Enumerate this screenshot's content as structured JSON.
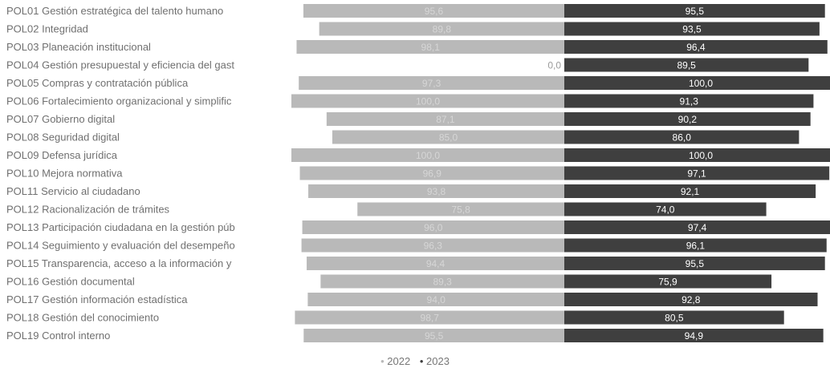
{
  "colors": {
    "series_2022": "#b9b9b9",
    "series_2023": "#3f3f3f",
    "label_2022": "#d6d6d6",
    "label_2023": "#ffffff",
    "zero_label": "#9a9a9a",
    "category_text": "#707070"
  },
  "chart_data": {
    "type": "bar",
    "orientation": "horizontal-diverging",
    "title": "",
    "xlabel": "",
    "ylabel": "",
    "xlim": [
      0,
      100
    ],
    "grid": false,
    "legend_position": "bottom",
    "categories": [
      "POL01  Gestión estratégica del talento humano",
      "POL02  Integridad",
      "POL03  Planeación institucional",
      "POL04  Gestión presupuestal y eficiencia del gast",
      "POL05  Compras y contratación pública",
      "POL06  Fortalecimiento organizacional y simplific",
      "POL07  Gobierno digital",
      "POL08  Seguridad digital",
      "POL09  Defensa jurídica",
      "POL10  Mejora normativa",
      "POL11  Servicio al ciudadano",
      "POL12  Racionalización de trámites",
      "POL13  Participación ciudadana en la gestión púb",
      "POL14  Seguimiento y evaluación del desempeño",
      "POL15  Transparencia, acceso a la información y",
      "POL16  Gestión documental",
      "POL17  Gestión información estadística",
      "POL18  Gestión del conocimiento",
      "POL19  Control interno"
    ],
    "series": [
      {
        "name": "2022",
        "values": [
          95.6,
          89.8,
          98.1,
          0.0,
          97.3,
          100.0,
          87.1,
          85.0,
          100.0,
          96.9,
          93.8,
          75.8,
          96.0,
          96.3,
          94.4,
          89.3,
          94.0,
          98.7,
          95.5
        ],
        "labels": [
          "95,6",
          "89,8",
          "98,1",
          "0,0",
          "97,3",
          "100,0",
          "87,1",
          "85,0",
          "100,0",
          "96,9",
          "93,8",
          "75,8",
          "96,0",
          "96,3",
          "94,4",
          "89,3",
          "94,0",
          "98,7",
          "95,5"
        ]
      },
      {
        "name": "2023",
        "values": [
          95.5,
          93.5,
          96.4,
          89.5,
          100.0,
          91.3,
          90.2,
          86.0,
          100.0,
          97.1,
          92.1,
          74.0,
          97.4,
          96.1,
          95.5,
          75.9,
          92.8,
          80.5,
          94.9
        ],
        "labels": [
          "95,5",
          "93,5",
          "96,4",
          "89,5",
          "100,0",
          "91,3",
          "90,2",
          "86,0",
          "100,0",
          "97,1",
          "92,1",
          "74,0",
          "97,4",
          "96,1",
          "95,5",
          "75,9",
          "92,8",
          "80,5",
          "94,9"
        ]
      }
    ]
  }
}
